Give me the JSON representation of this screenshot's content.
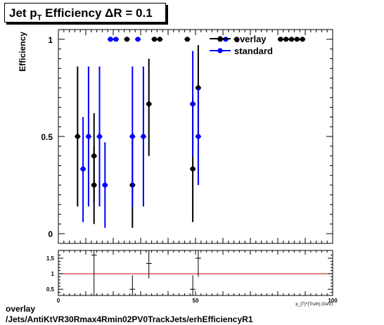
{
  "title": {
    "main": "Jet p",
    "sub": "T",
    "rest": " Efficiency  ΔR = 0.1"
  },
  "footer": {
    "line1": "overlay",
    "line2": "/Jets/AntiKtVR30Rmax4Rmin02PV0TrackJets/erhEfficiencyR1"
  },
  "colors": {
    "overlay": "#000000",
    "standard": "#0000ff",
    "ratio_line": "#cc0000"
  },
  "chart_data": [
    {
      "type": "scatter",
      "title": "Jet pT Efficiency ΔR = 0.1",
      "ylabel": "Efficiency",
      "xlim": [
        0,
        100
      ],
      "ylim": [
        -0.05,
        1.05
      ],
      "yticks": [
        0,
        0.5,
        1
      ],
      "ytick_labels": [
        "0",
        "0.5",
        "1"
      ],
      "legend": {
        "position": "top-right",
        "entries": [
          "overlay",
          "standard"
        ]
      },
      "series": [
        {
          "name": "overlay",
          "color": "#000000",
          "points": [
            {
              "x": 7,
              "y": 0.5,
              "lo": 0.14,
              "hi": 0.86
            },
            {
              "x": 13,
              "y": 0.4,
              "lo": 0.16,
              "hi": 0.62
            },
            {
              "x": 13,
              "y": 0.25,
              "lo": 0.05,
              "hi": 0.45
            },
            {
              "x": 19,
              "y": 1.0,
              "lo": 1.0,
              "hi": 1.0
            },
            {
              "x": 25,
              "y": 1.0,
              "lo": 1.0,
              "hi": 1.0
            },
            {
              "x": 27,
              "y": 0.25,
              "lo": 0.03,
              "hi": 0.5
            },
            {
              "x": 33,
              "y": 0.667,
              "lo": 0.4,
              "hi": 0.9
            },
            {
              "x": 35,
              "y": 1.0,
              "lo": 1.0,
              "hi": 1.0
            },
            {
              "x": 37,
              "y": 1.0,
              "lo": 1.0,
              "hi": 1.0
            },
            {
              "x": 47,
              "y": 1.0,
              "lo": 1.0,
              "hi": 1.0
            },
            {
              "x": 49,
              "y": 0.333,
              "lo": 0.06,
              "hi": 0.7
            },
            {
              "x": 51,
              "y": 0.75,
              "lo": 0.48,
              "hi": 0.97
            },
            {
              "x": 59,
              "y": 1.0,
              "lo": 1.0,
              "hi": 1.0
            },
            {
              "x": 65,
              "y": 1.0,
              "lo": 1.0,
              "hi": 1.0
            },
            {
              "x": 81,
              "y": 1.0,
              "lo": 1.0,
              "hi": 1.0
            },
            {
              "x": 83,
              "y": 1.0,
              "lo": 1.0,
              "hi": 1.0
            },
            {
              "x": 85,
              "y": 1.0,
              "lo": 1.0,
              "hi": 1.0
            },
            {
              "x": 87,
              "y": 1.0,
              "lo": 1.0,
              "hi": 1.0
            },
            {
              "x": 89,
              "y": 1.0,
              "lo": 1.0,
              "hi": 1.0
            }
          ]
        },
        {
          "name": "standard",
          "color": "#0000ff",
          "points": [
            {
              "x": 9,
              "y": 0.333,
              "lo": 0.06,
              "hi": 0.6
            },
            {
              "x": 11,
              "y": 0.5,
              "lo": 0.14,
              "hi": 0.86
            },
            {
              "x": 15,
              "y": 0.5,
              "lo": 0.14,
              "hi": 0.86
            },
            {
              "x": 17,
              "y": 0.25,
              "lo": 0.03,
              "hi": 0.47
            },
            {
              "x": 19,
              "y": 1.0,
              "lo": 1.0,
              "hi": 1.0
            },
            {
              "x": 21,
              "y": 1.0,
              "lo": 1.0,
              "hi": 1.0
            },
            {
              "x": 27,
              "y": 0.5,
              "lo": 0.14,
              "hi": 0.86
            },
            {
              "x": 29,
              "y": 1.0,
              "lo": 1.0,
              "hi": 1.0
            },
            {
              "x": 31,
              "y": 0.5,
              "lo": 0.14,
              "hi": 0.86
            },
            {
              "x": 49,
              "y": 0.667,
              "lo": 0.4,
              "hi": 0.94
            },
            {
              "x": 51,
              "y": 0.5,
              "lo": 0.25,
              "hi": 0.75
            },
            {
              "x": 61,
              "y": 1.0,
              "lo": 1.0,
              "hi": 1.0
            }
          ]
        }
      ]
    },
    {
      "type": "scatter",
      "xlabel": "p_{T}^{Truth} (GeV)",
      "xlim": [
        0,
        100
      ],
      "ylim": [
        0.3,
        1.75
      ],
      "xticks": [
        0,
        50,
        100
      ],
      "xtick_labels": [
        "0",
        "50",
        "100"
      ],
      "yticks": [
        0.5,
        1,
        1.5
      ],
      "ytick_labels": [
        "0.5",
        "1",
        "1.5"
      ],
      "reference_line": 1.0,
      "series": [
        {
          "name": "ratio",
          "color": "#000000",
          "points": [
            {
              "x": 13,
              "y": 1.6,
              "lo": 0.3,
              "hi": 1.75
            },
            {
              "x": 27,
              "y": 0.5,
              "lo": 0.3,
              "hi": 0.95
            },
            {
              "x": 33,
              "y": 1.33,
              "lo": 0.85,
              "hi": 1.75
            },
            {
              "x": 49,
              "y": 0.5,
              "lo": 0.3,
              "hi": 0.95
            },
            {
              "x": 51,
              "y": 1.5,
              "lo": 0.9,
              "hi": 1.75
            }
          ]
        }
      ]
    }
  ]
}
